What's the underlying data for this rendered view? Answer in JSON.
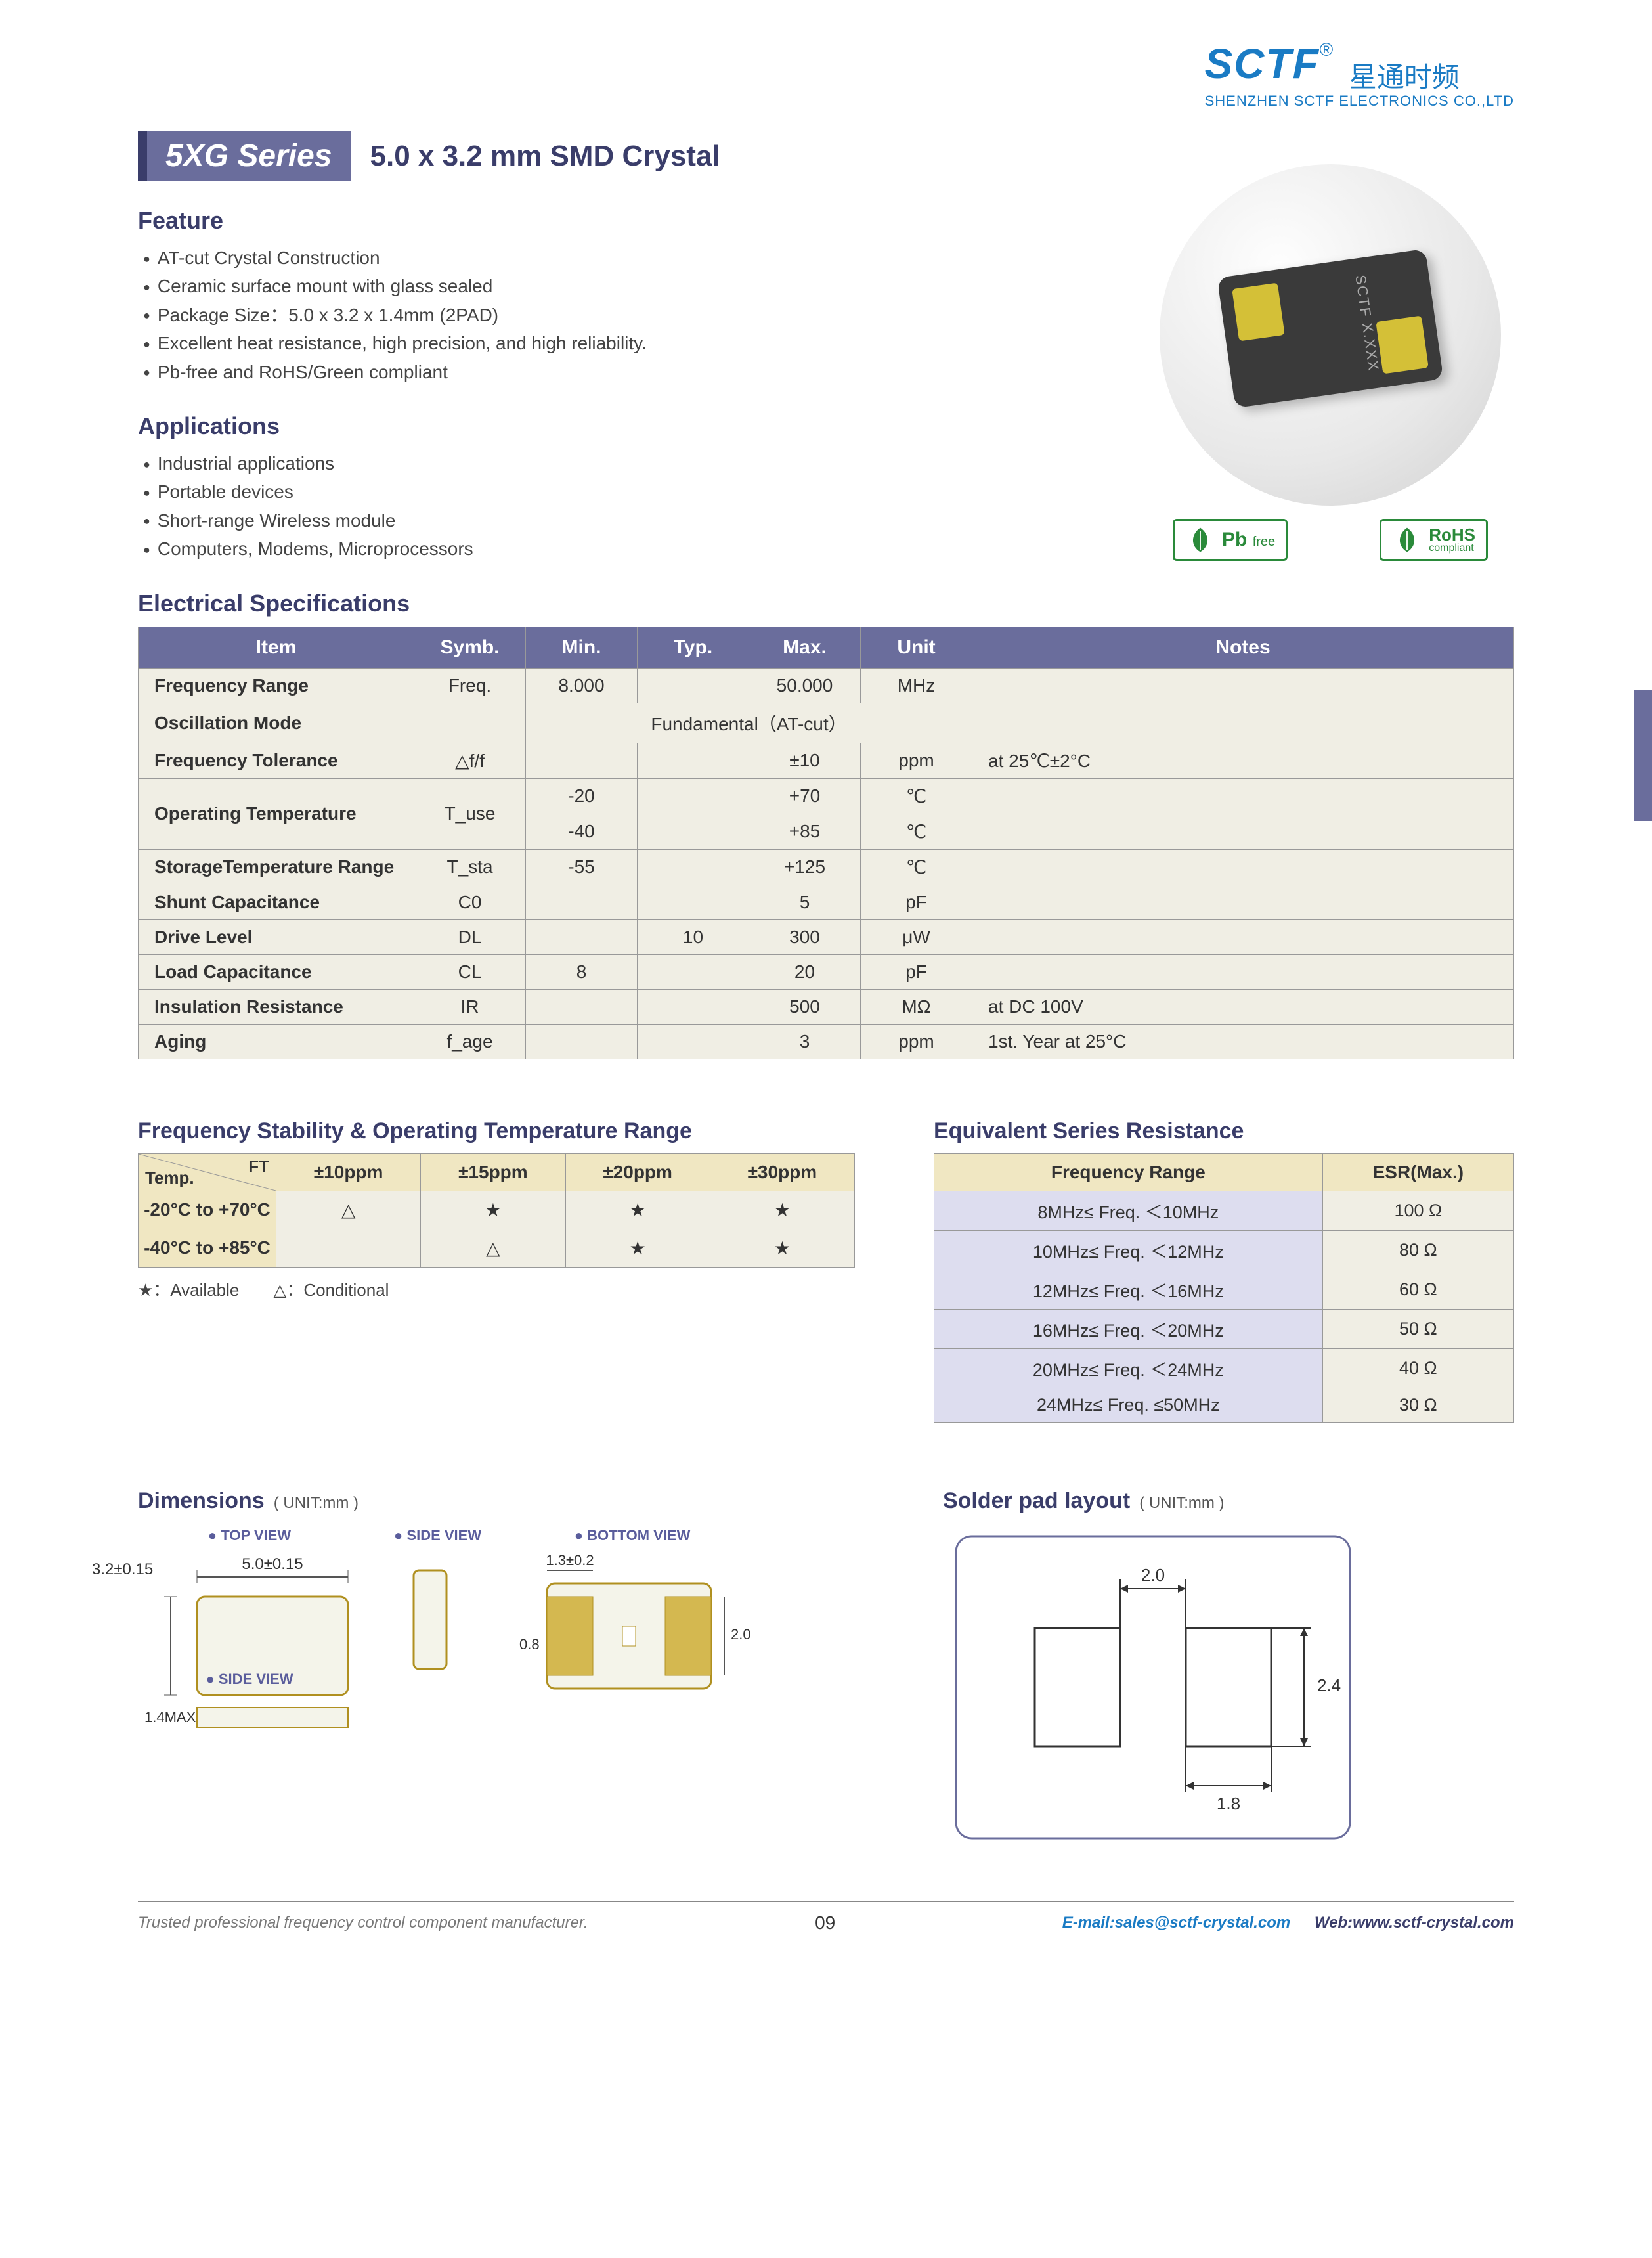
{
  "logo": {
    "brand": "SCTF",
    "reg": "®",
    "cn": "星通时频",
    "sub": "SHENZHEN SCTF ELECTRONICS CO.,LTD"
  },
  "series": {
    "badge": "5XG Series",
    "title": "5.0 x 3.2 mm SMD Crystal"
  },
  "feature": {
    "head": "Feature",
    "items": [
      "AT-cut Crystal Construction",
      "Ceramic surface mount with glass sealed",
      "Package Size：5.0 x 3.2 x 1.4mm (2PAD)",
      "Excellent heat resistance, high precision, and high reliability.",
      "Pb-free and RoHS/Green compliant"
    ]
  },
  "applications": {
    "head": "Applications",
    "items": [
      "Industrial applications",
      "Portable devices",
      "Short-range Wireless module",
      "Computers, Modems, Microprocessors"
    ]
  },
  "chip_text": "SCTF X.XXX",
  "badge1": {
    "main": "Pb",
    "sub": "free"
  },
  "badge2": {
    "main": "RoHS",
    "sub": "compliant"
  },
  "elec_head": "Electrical Specifications",
  "spec_headers": [
    "Item",
    "Symb.",
    "Min.",
    "Typ.",
    "Max.",
    "Unit",
    "Notes"
  ],
  "spec_rows": [
    {
      "item": "Frequency Range",
      "symb": "Freq.",
      "min": "8.000",
      "typ": "",
      "max": "50.000",
      "unit": "MHz",
      "notes": ""
    },
    {
      "item": "Oscillation Mode",
      "symb": "",
      "span": "Fundamental（AT-cut）",
      "notes": ""
    },
    {
      "item": "Frequency Tolerance",
      "symb": "△f/f",
      "min": "",
      "typ": "",
      "max": "±10",
      "unit": "ppm",
      "notes": "at 25℃±2°C"
    },
    {
      "item": "Operating Temperature",
      "symb": "T_use",
      "rows": [
        {
          "min": "-20",
          "typ": "",
          "max": "+70",
          "unit": "℃",
          "notes": ""
        },
        {
          "min": "-40",
          "typ": "",
          "max": "+85",
          "unit": "℃",
          "notes": ""
        }
      ]
    },
    {
      "item": "StorageTemperature Range",
      "symb": "T_sta",
      "min": "-55",
      "typ": "",
      "max": "+125",
      "unit": "℃",
      "notes": ""
    },
    {
      "item": "Shunt Capacitance",
      "symb": "C0",
      "min": "",
      "typ": "",
      "max": "5",
      "unit": "pF",
      "notes": ""
    },
    {
      "item": "Drive Level",
      "symb": "DL",
      "min": "",
      "typ": "10",
      "max": "300",
      "unit": "μW",
      "notes": ""
    },
    {
      "item": "Load Capacitance",
      "symb": "CL",
      "min": "8",
      "typ": "",
      "max": "20",
      "unit": "pF",
      "notes": ""
    },
    {
      "item": "Insulation Resistance",
      "symb": "IR",
      "min": "",
      "typ": "",
      "max": "500",
      "unit": "MΩ",
      "notes": "at DC 100V"
    },
    {
      "item": "Aging",
      "symb": "f_age",
      "min": "",
      "typ": "",
      "max": "3",
      "unit": "ppm",
      "notes": "1st. Year at 25°C"
    }
  ],
  "freq_stab": {
    "head": "Frequency Stability & Operating Temperature Range",
    "ft": "FT",
    "temp": "Temp.",
    "cols": [
      "±10ppm",
      "±15ppm",
      "±20ppm",
      "±30ppm"
    ],
    "rows": [
      {
        "label": "-20°C to +70°C",
        "vals": [
          "△",
          "★",
          "★",
          "★"
        ]
      },
      {
        "label": "-40°C to +85°C",
        "vals": [
          "",
          "△",
          "★",
          "★"
        ]
      }
    ],
    "legend": "★：Available　　△：Conditional"
  },
  "esr": {
    "head": "Equivalent Series Resistance",
    "th1": "Frequency Range",
    "th2": "ESR(Max.)",
    "rows": [
      {
        "range": "8MHz≤ Freq. ＜10MHz",
        "val": "100 Ω"
      },
      {
        "range": "10MHz≤ Freq. ＜12MHz",
        "val": "80 Ω"
      },
      {
        "range": "12MHz≤ Freq. ＜16MHz",
        "val": "60 Ω"
      },
      {
        "range": "16MHz≤ Freq. ＜20MHz",
        "val": "50 Ω"
      },
      {
        "range": "20MHz≤ Freq. ＜24MHz",
        "val": "40 Ω"
      },
      {
        "range": "24MHz≤ Freq. ≤50MHz",
        "val": "30 Ω"
      }
    ]
  },
  "dims": {
    "head": "Dimensions",
    "unit": "( UNIT:mm )",
    "top": "TOP VIEW",
    "side": "SIDE VIEW",
    "bottom": "BOTTOM VIEW",
    "w": "5.0±0.15",
    "h": "3.2±0.15",
    "t": "1.4MAX",
    "pad_w": "1.3±0.2",
    "pad_h": "2.0±0.2",
    "pad_gap": "0.8"
  },
  "solder": {
    "head": "Solder pad layout",
    "unit": "( UNIT:mm )",
    "gap": "2.0",
    "pw": "1.8",
    "ph": "2.4"
  },
  "footer": {
    "tag": "Trusted professional frequency control component manufacturer.",
    "page": "09",
    "email_l": "E-mail:",
    "email": "sales@sctf-crystal.com",
    "web_l": "Web:",
    "web": "www.sctf-crystal.com"
  }
}
